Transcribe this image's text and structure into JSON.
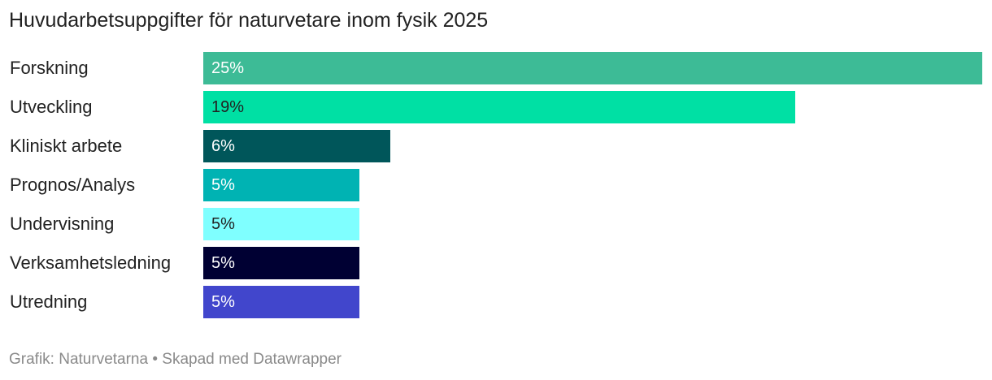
{
  "chart_data": {
    "type": "bar",
    "orientation": "horizontal",
    "title": "Huvudarbetsuppgifter för naturvetare inom fysik 2025",
    "categories": [
      "Forskning",
      "Utveckling",
      "Kliniskt arbete",
      "Prognos/Analys",
      "Undervisning",
      "Verksamhetsledning",
      "Utredning"
    ],
    "values": [
      25,
      19,
      6,
      5,
      5,
      5,
      5
    ],
    "value_labels": [
      "25%",
      "19%",
      "6%",
      "5%",
      "5%",
      "5%",
      "5%"
    ],
    "colors": [
      "#3DBB96",
      "#00E0A4",
      "#00565A",
      "#00B3B3",
      "#7FFFFF",
      "#000033",
      "#4146CC"
    ],
    "label_colors": [
      "#ffffff",
      "#222222",
      "#ffffff",
      "#ffffff",
      "#222222",
      "#ffffff",
      "#ffffff"
    ],
    "xlim": [
      0,
      25
    ],
    "grid": false,
    "xlabel": "",
    "ylabel": ""
  },
  "footer": "Grafik: Naturvetarna • Skapad med Datawrapper"
}
